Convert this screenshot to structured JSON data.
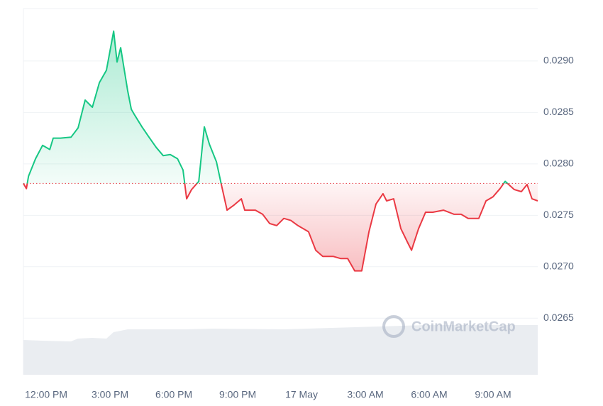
{
  "chart_data": {
    "type": "line",
    "watermark": "CoinMarketCap",
    "baseline": 0.02781,
    "x": [
      -1.07,
      -0.93,
      -0.83,
      -0.5,
      -0.17,
      0.17,
      0.33,
      0.67,
      1.17,
      1.5,
      1.83,
      2.17,
      2.5,
      2.83,
      3.17,
      3.33,
      3.5,
      3.83,
      4.0,
      4.17,
      4.5,
      4.83,
      5.17,
      5.5,
      5.83,
      6.17,
      6.43,
      6.6,
      6.83,
      7.17,
      7.43,
      7.67,
      8.0,
      8.23,
      8.5,
      8.83,
      9.17,
      9.33,
      9.83,
      10.17,
      10.5,
      10.83,
      11.17,
      11.5,
      11.83,
      12.33,
      12.67,
      13.0,
      13.5,
      13.83,
      14.17,
      14.5,
      14.83,
      15.17,
      15.5,
      15.83,
      16.0,
      16.33,
      16.67,
      17.0,
      17.17,
      17.5,
      17.83,
      18.17,
      18.67,
      19.17,
      19.5,
      19.83,
      20.33,
      20.67,
      21.0,
      21.33,
      21.57,
      22.0,
      22.33,
      22.6,
      22.83,
      23.1
    ],
    "values": [
      0.02781,
      0.02776,
      0.02788,
      0.02805,
      0.02818,
      0.02814,
      0.02825,
      0.02825,
      0.02826,
      0.02835,
      0.02862,
      0.02855,
      0.02879,
      0.02891,
      0.02929,
      0.02899,
      0.02913,
      0.02871,
      0.02853,
      0.02847,
      0.02836,
      0.02826,
      0.02816,
      0.02808,
      0.02809,
      0.02805,
      0.02794,
      0.02766,
      0.02775,
      0.02783,
      0.02836,
      0.02819,
      0.02802,
      0.0278,
      0.02755,
      0.0276,
      0.02766,
      0.02755,
      0.02755,
      0.02751,
      0.02742,
      0.0274,
      0.02747,
      0.02745,
      0.0274,
      0.02734,
      0.02716,
      0.0271,
      0.0271,
      0.02708,
      0.02708,
      0.02696,
      0.02696,
      0.02734,
      0.02761,
      0.02771,
      0.02764,
      0.02766,
      0.02737,
      0.02723,
      0.02716,
      0.02737,
      0.02753,
      0.02753,
      0.02755,
      0.02751,
      0.02751,
      0.02747,
      0.02747,
      0.02764,
      0.02768,
      0.02776,
      0.02783,
      0.02775,
      0.02773,
      0.0278,
      0.02766,
      0.02764
    ],
    "up_color": "#16c784",
    "down_color": "#ea3943",
    "xlim": [
      -1.07,
      23.1
    ],
    "xticks": [
      {
        "value": 0,
        "label": "12:00 PM"
      },
      {
        "value": 3,
        "label": "3:00 PM"
      },
      {
        "value": 6,
        "label": "6:00 PM"
      },
      {
        "value": 9,
        "label": "9:00 PM"
      },
      {
        "value": 12,
        "label": "17 May"
      },
      {
        "value": 15,
        "label": "3:00 AM"
      },
      {
        "value": 18,
        "label": "6:00 AM"
      },
      {
        "value": 21,
        "label": "9:00 AM"
      }
    ],
    "ylim": [
      0.02595,
      0.02951
    ],
    "yticks": [
      {
        "value": 0.0265,
        "label": "0.0265"
      },
      {
        "value": 0.027,
        "label": "0.0270"
      },
      {
        "value": 0.0275,
        "label": "0.0275"
      },
      {
        "value": 0.028,
        "label": "0.0280"
      },
      {
        "value": 0.0285,
        "label": "0.0285"
      },
      {
        "value": 0.029,
        "label": "0.0290"
      }
    ],
    "grid": true
  }
}
